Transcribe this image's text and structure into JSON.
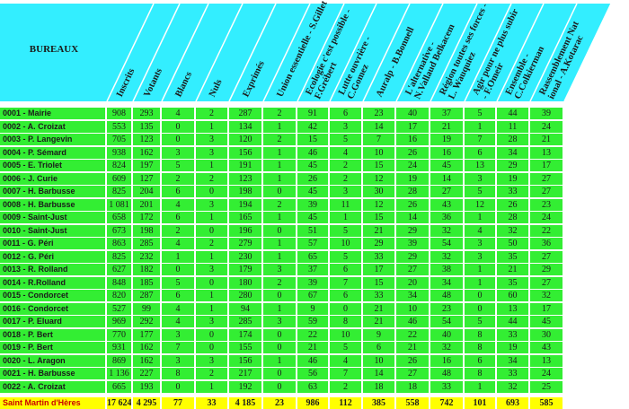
{
  "colors": {
    "header": "#33eeff",
    "row": "#33ee33",
    "total": "#ffff00"
  },
  "header": {
    "title": "BUREAUX",
    "columns": [
      [
        "Inscrits"
      ],
      [
        "Votants"
      ],
      [
        "Blancs"
      ],
      [
        "Nuls"
      ],
      [
        "Exprimés"
      ],
      [
        "Union essentielle - S.Gillet"
      ],
      [
        "Ecologie c'est possible -",
        "F.Grébert"
      ],
      [
        "Lutte ouvrière -",
        "C.Gomez"
      ],
      [
        "Auralp - B.Bonnell"
      ],
      [
        "L'alternative -",
        "N.Vallaud Belkacem"
      ],
      [
        "Région toutes ses forces -",
        "L. Wauquiez"
      ],
      [
        "Agir pour ne plus subir",
        "- F.Omeir"
      ],
      [
        "Ensemble -",
        "C.Colkierman"
      ],
      [
        "Rassemblement Nat",
        "ional - A.Kotarac"
      ]
    ]
  },
  "rows": [
    {
      "label": "0001 - Mairie",
      "values": [
        "908",
        "293",
        "4",
        "2",
        "287",
        "2",
        "91",
        "6",
        "23",
        "40",
        "37",
        "5",
        "44",
        "39"
      ]
    },
    {
      "label": "0002 - A. Croizat",
      "values": [
        "553",
        "135",
        "0",
        "1",
        "134",
        "1",
        "42",
        "3",
        "14",
        "17",
        "21",
        "1",
        "11",
        "24"
      ]
    },
    {
      "label": "0003 - P. Langevin",
      "values": [
        "705",
        "123",
        "0",
        "3",
        "120",
        "2",
        "15",
        "5",
        "7",
        "16",
        "19",
        "7",
        "28",
        "21"
      ]
    },
    {
      "label": "0004 - P. Sémard",
      "values": [
        "938",
        "162",
        "3",
        "3",
        "156",
        "1",
        "46",
        "4",
        "10",
        "26",
        "16",
        "6",
        "34",
        "13"
      ]
    },
    {
      "label": "0005 - E. Triolet",
      "values": [
        "824",
        "197",
        "5",
        "1",
        "191",
        "1",
        "45",
        "2",
        "15",
        "24",
        "45",
        "13",
        "29",
        "17"
      ]
    },
    {
      "label": "0006 - J. Curie",
      "values": [
        "609",
        "127",
        "2",
        "2",
        "123",
        "1",
        "26",
        "2",
        "12",
        "19",
        "14",
        "3",
        "19",
        "27"
      ]
    },
    {
      "label": "0007 - H. Barbusse",
      "values": [
        "825",
        "204",
        "6",
        "0",
        "198",
        "0",
        "45",
        "3",
        "30",
        "28",
        "27",
        "5",
        "33",
        "27"
      ]
    },
    {
      "label": "0008 - H. Barbusse",
      "values": [
        "1 081",
        "201",
        "4",
        "3",
        "194",
        "2",
        "39",
        "11",
        "12",
        "26",
        "43",
        "12",
        "26",
        "23"
      ]
    },
    {
      "label": "0009 - Saint-Just",
      "values": [
        "658",
        "172",
        "6",
        "1",
        "165",
        "1",
        "45",
        "1",
        "15",
        "14",
        "36",
        "1",
        "28",
        "24"
      ]
    },
    {
      "label": "0010 - Saint-Just",
      "values": [
        "673",
        "198",
        "2",
        "0",
        "196",
        "0",
        "51",
        "5",
        "21",
        "29",
        "32",
        "4",
        "32",
        "22"
      ]
    },
    {
      "label": "0011 - G. Péri",
      "values": [
        "863",
        "285",
        "4",
        "2",
        "279",
        "1",
        "57",
        "10",
        "29",
        "39",
        "54",
        "3",
        "50",
        "36"
      ]
    },
    {
      "label": "0012 - G. Péri",
      "values": [
        "825",
        "232",
        "1",
        "1",
        "230",
        "1",
        "65",
        "5",
        "33",
        "29",
        "32",
        "3",
        "35",
        "27"
      ]
    },
    {
      "label": "0013 - R. Rolland",
      "values": [
        "627",
        "182",
        "0",
        "3",
        "179",
        "3",
        "37",
        "6",
        "17",
        "27",
        "38",
        "1",
        "21",
        "29"
      ]
    },
    {
      "label": "0014 - R.Rolland",
      "values": [
        "848",
        "185",
        "5",
        "0",
        "180",
        "2",
        "39",
        "7",
        "15",
        "20",
        "34",
        "1",
        "35",
        "27"
      ]
    },
    {
      "label": "0015 - Condorcet",
      "values": [
        "820",
        "287",
        "6",
        "1",
        "280",
        "0",
        "67",
        "6",
        "33",
        "34",
        "48",
        "0",
        "60",
        "32"
      ]
    },
    {
      "label": "0016 - Condorcet",
      "values": [
        "527",
        "99",
        "4",
        "1",
        "94",
        "1",
        "9",
        "0",
        "21",
        "10",
        "23",
        "0",
        "13",
        "17"
      ]
    },
    {
      "label": "0017 - P. Eluard",
      "values": [
        "969",
        "292",
        "4",
        "3",
        "285",
        "3",
        "59",
        "8",
        "21",
        "46",
        "54",
        "5",
        "44",
        "45"
      ]
    },
    {
      "label": "0018 - P. Bert",
      "values": [
        "770",
        "177",
        "3",
        "0",
        "174",
        "0",
        "22",
        "10",
        "9",
        "22",
        "40",
        "8",
        "33",
        "30"
      ]
    },
    {
      "label": "0019 - P. Bert",
      "values": [
        "931",
        "162",
        "7",
        "0",
        "155",
        "0",
        "21",
        "5",
        "6",
        "21",
        "32",
        "8",
        "19",
        "43"
      ]
    },
    {
      "label": "0020 - L. Aragon",
      "values": [
        "869",
        "162",
        "3",
        "3",
        "156",
        "1",
        "46",
        "4",
        "10",
        "26",
        "16",
        "6",
        "34",
        "13"
      ]
    },
    {
      "label": "0021 - H. Barbusse",
      "values": [
        "1 136",
        "227",
        "8",
        "2",
        "217",
        "0",
        "56",
        "7",
        "14",
        "27",
        "48",
        "8",
        "33",
        "24"
      ]
    },
    {
      "label": "0022 - A. Croizat",
      "values": [
        "665",
        "193",
        "0",
        "1",
        "192",
        "0",
        "63",
        "2",
        "18",
        "18",
        "33",
        "1",
        "32",
        "25"
      ]
    }
  ],
  "total": {
    "label": "Saint Martin d'Hères",
    "values": [
      "17 624",
      "4 295",
      "77",
      "33",
      "4 185",
      "23",
      "986",
      "112",
      "385",
      "558",
      "742",
      "101",
      "693",
      "585"
    ]
  }
}
